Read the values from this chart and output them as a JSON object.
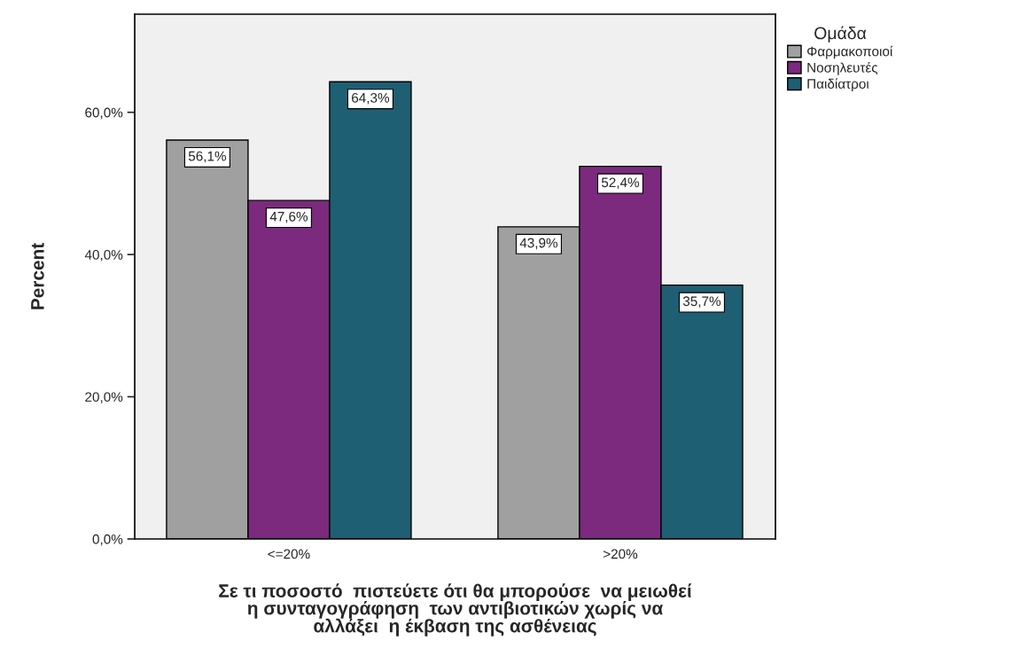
{
  "chart_data": {
    "type": "bar",
    "xlabel": "Σε τι ποσοστό  πιστεύετε ότι θα μπορούσε  να μειωθεί\nη συνταγογράφηση  των αντιβιοτικών χωρίς να\nαλλάξει  η έκβαση της ασθένειας",
    "ylabel": "Percent",
    "legend_title": "Ομάδα",
    "legend": "top right",
    "categories": [
      "<=20%",
      ">20%"
    ],
    "series": [
      {
        "name": "Φαρμακοποιοί",
        "color": "#a0a0a0",
        "values": [
          56.1,
          43.9
        ],
        "value_labels": [
          "56,1%",
          "43,9%"
        ]
      },
      {
        "name": "Νοσηλευτές",
        "color": "#7b2a7e",
        "values": [
          47.6,
          52.4
        ],
        "value_labels": [
          "47,6%",
          "52,4%"
        ]
      },
      {
        "name": "Παιδίατροι",
        "color": "#1e5f74",
        "values": [
          64.3,
          35.7
        ],
        "value_labels": [
          "64,3%",
          "35,7%"
        ]
      }
    ],
    "ylim": [
      0,
      73.8
    ],
    "yticks": [
      {
        "value": 0,
        "label": "0,0%"
      },
      {
        "value": 20,
        "label": "20,0%"
      },
      {
        "value": 40,
        "label": "40,0%"
      },
      {
        "value": 60,
        "label": "60,0%"
      }
    ],
    "grid": false
  }
}
